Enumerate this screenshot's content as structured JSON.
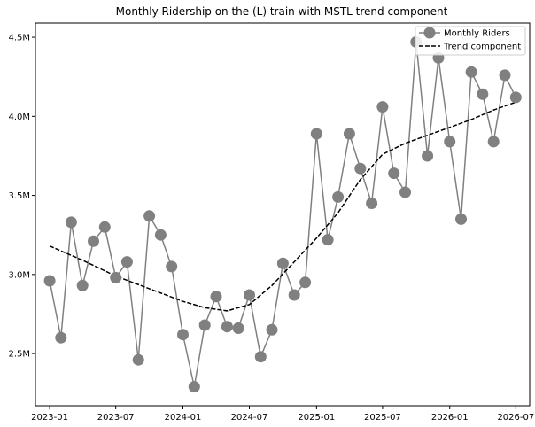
{
  "chart_data": {
    "type": "line",
    "title": "Monthly Ridership on the (L) train with MSTL trend component",
    "xlabel": "",
    "ylabel": "",
    "ylim": [
      2.17,
      4.59
    ],
    "xlim": [
      "2022-11-23",
      "2026-08-08"
    ],
    "grid": false,
    "legend_position": "top-right",
    "x_ticks": [
      "2023-01",
      "2023-07",
      "2024-01",
      "2024-07",
      "2025-01",
      "2025-07",
      "2026-01",
      "2026-07"
    ],
    "y_ticks": [
      {
        "value": 2.5,
        "label": "2.5M"
      },
      {
        "value": 3.0,
        "label": "3.0M"
      },
      {
        "value": 3.5,
        "label": "3.5M"
      },
      {
        "value": 4.0,
        "label": "4.0M"
      },
      {
        "value": 4.5,
        "label": "4.5M"
      }
    ],
    "series": [
      {
        "name": "Monthly Riders",
        "color": "#808080",
        "style": "solid-with-markers",
        "x": [
          "2023-01",
          "2023-02",
          "2023-03",
          "2023-04",
          "2023-05",
          "2023-06",
          "2023-07",
          "2023-08",
          "2023-09",
          "2023-10",
          "2023-11",
          "2023-12",
          "2024-01",
          "2024-02",
          "2024-03",
          "2024-04",
          "2024-05",
          "2024-06",
          "2024-07",
          "2024-08",
          "2024-09",
          "2024-10",
          "2024-11",
          "2024-12",
          "2025-01",
          "2025-02",
          "2025-03",
          "2025-04",
          "2025-05",
          "2025-06",
          "2025-07",
          "2025-08",
          "2025-09",
          "2025-10",
          "2025-11",
          "2025-12",
          "2026-01",
          "2026-02",
          "2026-03",
          "2026-04",
          "2026-05",
          "2026-06",
          "2026-07"
        ],
        "values": [
          2.96,
          2.6,
          3.33,
          2.93,
          3.21,
          3.3,
          2.98,
          3.08,
          2.46,
          3.37,
          3.25,
          3.05,
          2.62,
          2.29,
          2.68,
          2.86,
          2.67,
          2.66,
          2.87,
          2.48,
          2.65,
          3.07,
          2.87,
          2.95,
          3.89,
          3.22,
          3.49,
          3.89,
          3.67,
          3.45,
          4.06,
          3.64,
          3.52,
          4.47,
          3.75,
          4.37,
          3.84,
          3.35,
          4.28,
          4.14,
          3.84,
          4.26,
          4.12
        ]
      },
      {
        "name": "Trend component",
        "color": "#000000",
        "style": "dashed",
        "x": [
          "2023-01",
          "2023-04",
          "2023-07",
          "2023-10",
          "2024-01",
          "2024-03",
          "2024-05",
          "2024-07",
          "2024-09",
          "2024-11",
          "2025-01",
          "2025-03",
          "2025-05",
          "2025-07",
          "2025-09",
          "2025-11",
          "2026-01",
          "2026-03",
          "2026-05",
          "2026-07"
        ],
        "values": [
          3.18,
          3.09,
          2.99,
          2.91,
          2.83,
          2.79,
          2.77,
          2.81,
          2.93,
          3.08,
          3.23,
          3.39,
          3.6,
          3.76,
          3.83,
          3.88,
          3.93,
          3.98,
          4.04,
          4.09
        ]
      }
    ]
  }
}
